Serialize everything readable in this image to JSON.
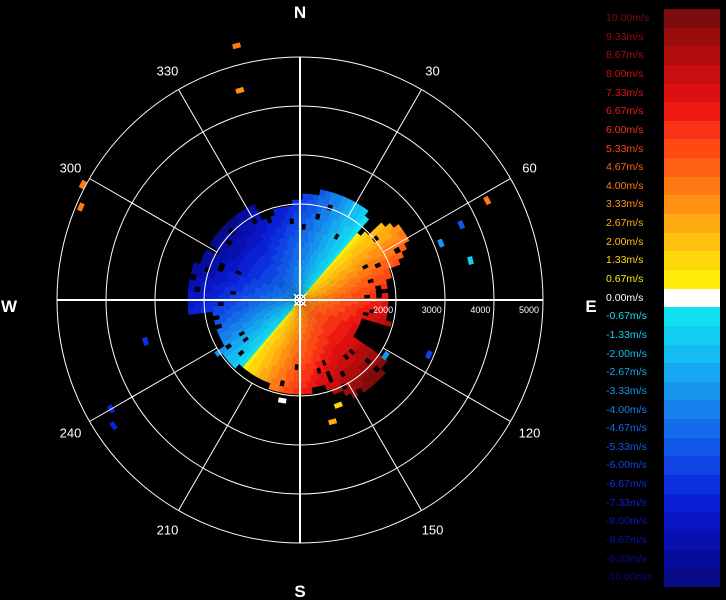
{
  "chart_data": {
    "type": "polar-sector",
    "compass_labels": {
      "north": "N",
      "east": "E",
      "south": "S",
      "west": "W"
    },
    "azimuth_labels": [
      "30",
      "60",
      "120",
      "150",
      "210",
      "240",
      "300",
      "330"
    ],
    "azimuths_deg": [
      30,
      60,
      120,
      150,
      210,
      240,
      300,
      330
    ],
    "range_labels": [
      "2000",
      "3000",
      "4000",
      "5000"
    ],
    "range_values": [
      2000,
      3000,
      4000,
      5000
    ],
    "rmax": 5000,
    "radial_spokes_deg": [
      0,
      30,
      60,
      90,
      120,
      150,
      180,
      210,
      240,
      270,
      300,
      330
    ],
    "legend": [
      {
        "label": "10.00m/s",
        "color": "#7e0c0c"
      },
      {
        "label": "9.33m/s",
        "color": "#9a0c0c"
      },
      {
        "label": "8.67m/s",
        "color": "#b00c0c"
      },
      {
        "label": "8.00m/s",
        "color": "#c80e0e"
      },
      {
        "label": "7.33m/s",
        "color": "#dc1010"
      },
      {
        "label": "6.67m/s",
        "color": "#ee1a12"
      },
      {
        "label": "6.00m/s",
        "color": "#f83214"
      },
      {
        "label": "5.33m/s",
        "color": "#ff4a14"
      },
      {
        "label": "4.67m/s",
        "color": "#ff6016"
      },
      {
        "label": "4.00m/s",
        "color": "#ff7a14"
      },
      {
        "label": "3.33m/s",
        "color": "#ff9214"
      },
      {
        "label": "2.67m/s",
        "color": "#ffaa12"
      },
      {
        "label": "2.00m/s",
        "color": "#ffc010"
      },
      {
        "label": "1.33m/s",
        "color": "#ffd60c"
      },
      {
        "label": "0.67m/s",
        "color": "#ffec08"
      },
      {
        "label": "0.00m/s",
        "color": "#ffffff"
      },
      {
        "label": "-0.67m/s",
        "color": "#10e0f0"
      },
      {
        "label": "-1.33m/s",
        "color": "#12cef2"
      },
      {
        "label": "-2.00m/s",
        "color": "#14bcf2"
      },
      {
        "label": "-2.67m/s",
        "color": "#16a8f0"
      },
      {
        "label": "-3.33m/s",
        "color": "#1694ee"
      },
      {
        "label": "-4.00m/s",
        "color": "#1680ec"
      },
      {
        "label": "-4.67m/s",
        "color": "#146cea"
      },
      {
        "label": "-5.33m/s",
        "color": "#1258e8"
      },
      {
        "label": "-6.00m/s",
        "color": "#1044e4"
      },
      {
        "label": "-6.67m/s",
        "color": "#0c30de"
      },
      {
        "label": "-7.33m/s",
        "color": "#0a20d4"
      },
      {
        "label": "-8.00m/s",
        "color": "#0816c4"
      },
      {
        "label": "-8.67m/s",
        "color": "#0810b0"
      },
      {
        "label": "-9.33m/s",
        "color": "#080c9c"
      },
      {
        "label": "-10.00m/s",
        "color": "#080a86"
      }
    ],
    "grid": true,
    "legend_position": "right"
  }
}
